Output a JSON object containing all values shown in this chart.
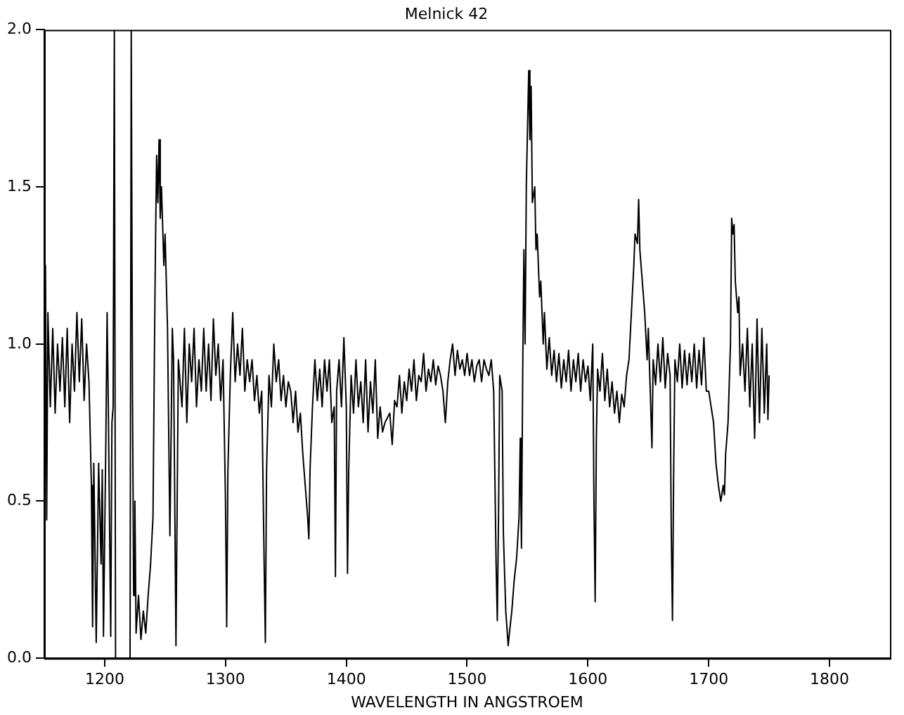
{
  "chart_data": {
    "type": "line",
    "title": "Melnick 42",
    "xlabel": "WAVELENGTH IN ANGSTROEM",
    "xlim": [
      1150,
      1850
    ],
    "xticks": [
      1200,
      1300,
      1400,
      1500,
      1600,
      1700,
      1800
    ],
    "ylim": [
      0,
      2
    ],
    "yticks": [
      {
        "value": 0,
        "label": "0.0"
      },
      {
        "value": 0.5,
        "label": "0.5"
      },
      {
        "value": 1,
        "label": "1.0"
      },
      {
        "value": 1.5,
        "label": "1.5"
      },
      {
        "value": 2,
        "label": "2.0"
      }
    ],
    "grid": false,
    "legend": false,
    "marker": "none",
    "line_style": "solid",
    "series": [
      {
        "color": "#000000",
        "x": [
          1150,
          1151,
          1152,
          1153,
          1155,
          1157,
          1159,
          1161,
          1163,
          1165,
          1167,
          1169,
          1171,
          1173,
          1175,
          1177,
          1179,
          1181,
          1183,
          1185,
          1187,
          1189,
          1190,
          1191,
          1193,
          1195,
          1197,
          1198,
          1199,
          1201,
          1202,
          1203,
          1205,
          1206,
          1207,
          1208,
          1209,
          1221,
          1222,
          1223,
          1224,
          1225,
          1226,
          1228,
          1230,
          1232,
          1234,
          1236,
          1238,
          1240,
          1241,
          1242,
          1243,
          1244,
          1245,
          1246,
          1247,
          1249,
          1250,
          1252,
          1254,
          1256,
          1257,
          1259,
          1261,
          1264,
          1266,
          1268,
          1270,
          1272,
          1274,
          1276,
          1278,
          1280,
          1282,
          1284,
          1286,
          1288,
          1290,
          1292,
          1294,
          1296,
          1298,
          1300,
          1301,
          1302,
          1304,
          1306,
          1308,
          1310,
          1312,
          1314,
          1316,
          1318,
          1320,
          1322,
          1324,
          1326,
          1328,
          1330,
          1332,
          1333,
          1334,
          1336,
          1338,
          1340,
          1342,
          1344,
          1346,
          1348,
          1350,
          1352,
          1354,
          1356,
          1358,
          1360,
          1362,
          1364,
          1366,
          1368,
          1369,
          1370,
          1372,
          1374,
          1376,
          1378,
          1380,
          1382,
          1384,
          1386,
          1388,
          1390,
          1391,
          1392,
          1394,
          1396,
          1398,
          1400,
          1401,
          1402,
          1404,
          1406,
          1408,
          1410,
          1412,
          1414,
          1416,
          1418,
          1420,
          1422,
          1424,
          1426,
          1428,
          1430,
          1432,
          1436,
          1438,
          1440,
          1442,
          1444,
          1446,
          1448,
          1450,
          1452,
          1454,
          1456,
          1458,
          1460,
          1462,
          1464,
          1466,
          1468,
          1470,
          1472,
          1474,
          1476,
          1478,
          1480,
          1482,
          1484,
          1486,
          1488,
          1490,
          1492,
          1494,
          1496,
          1498,
          1500,
          1502,
          1504,
          1506,
          1508,
          1510,
          1512,
          1514,
          1516,
          1518,
          1520,
          1522,
          1524,
          1525,
          1526,
          1527,
          1529,
          1530,
          1532,
          1534,
          1535,
          1537,
          1539,
          1541,
          1543,
          1544,
          1545,
          1546,
          1547,
          1548,
          1549,
          1551,
          1552,
          1553,
          1554,
          1556,
          1557,
          1558,
          1560,
          1561,
          1563,
          1564,
          1566,
          1568,
          1570,
          1572,
          1574,
          1576,
          1578,
          1580,
          1582,
          1584,
          1586,
          1588,
          1590,
          1592,
          1594,
          1596,
          1598,
          1600,
          1602,
          1604,
          1605,
          1606,
          1607,
          1608,
          1610,
          1612,
          1614,
          1616,
          1618,
          1620,
          1622,
          1624,
          1626,
          1628,
          1630,
          1632,
          1634,
          1636,
          1638,
          1639,
          1641,
          1642,
          1643,
          1645,
          1647,
          1649,
          1650,
          1652,
          1653,
          1654,
          1656,
          1658,
          1660,
          1662,
          1664,
          1666,
          1668,
          1669,
          1670,
          1671,
          1672,
          1674,
          1676,
          1678,
          1680,
          1682,
          1684,
          1686,
          1688,
          1690,
          1692,
          1694,
          1696,
          1698,
          1700,
          1702,
          1704,
          1706,
          1708,
          1710,
          1712,
          1713,
          1714,
          1716,
          1718,
          1719,
          1720,
          1721,
          1722,
          1724,
          1725,
          1726,
          1728,
          1730,
          1732,
          1734,
          1736,
          1738,
          1740,
          1742,
          1744,
          1746,
          1748,
          1749,
          1750
        ],
        "values": [
          0.95,
          1.25,
          0.44,
          1.1,
          0.8,
          1.05,
          0.78,
          1.0,
          0.85,
          1.02,
          0.8,
          1.05,
          0.75,
          1.0,
          0.85,
          1.1,
          0.88,
          1.08,
          0.82,
          1.0,
          0.88,
          0.55,
          0.1,
          0.62,
          0.05,
          0.62,
          0.3,
          0.6,
          0.07,
          0.7,
          1.1,
          0.8,
          0.07,
          0.75,
          0.8,
          2.0,
          0.0,
          0.0,
          2.0,
          0.85,
          0.2,
          0.5,
          0.08,
          0.2,
          0.06,
          0.15,
          0.08,
          0.2,
          0.3,
          0.45,
          0.9,
          1.3,
          1.6,
          1.45,
          1.65,
          1.4,
          1.5,
          1.25,
          1.35,
          1.05,
          0.39,
          1.05,
          0.95,
          0.04,
          0.95,
          0.8,
          1.05,
          0.75,
          1.0,
          0.88,
          1.05,
          0.8,
          0.95,
          0.85,
          1.05,
          0.85,
          1.0,
          0.82,
          1.08,
          0.9,
          1.0,
          0.82,
          0.95,
          0.5,
          0.1,
          0.6,
          0.9,
          1.1,
          0.88,
          1.0,
          0.9,
          1.05,
          0.85,
          0.95,
          0.88,
          0.95,
          0.82,
          0.9,
          0.78,
          0.85,
          0.3,
          0.05,
          0.6,
          0.9,
          0.8,
          1.0,
          0.88,
          0.95,
          0.82,
          0.9,
          0.8,
          0.88,
          0.85,
          0.75,
          0.85,
          0.72,
          0.78,
          0.65,
          0.55,
          0.45,
          0.38,
          0.6,
          0.8,
          0.95,
          0.82,
          0.92,
          0.8,
          0.95,
          0.85,
          0.95,
          0.75,
          0.8,
          0.26,
          0.85,
          0.95,
          0.8,
          1.02,
          0.8,
          0.27,
          0.6,
          0.9,
          0.78,
          0.95,
          0.8,
          0.88,
          0.75,
          0.95,
          0.72,
          0.88,
          0.78,
          0.95,
          0.7,
          0.8,
          0.72,
          0.75,
          0.78,
          0.68,
          0.82,
          0.8,
          0.9,
          0.78,
          0.88,
          0.82,
          0.92,
          0.85,
          0.95,
          0.82,
          0.9,
          0.88,
          0.97,
          0.85,
          0.92,
          0.88,
          0.95,
          0.87,
          0.93,
          0.9,
          0.85,
          0.75,
          0.88,
          0.95,
          1.0,
          0.9,
          0.98,
          0.92,
          0.95,
          0.9,
          0.97,
          0.9,
          0.95,
          0.88,
          0.93,
          0.95,
          0.88,
          0.95,
          0.92,
          0.9,
          0.95,
          0.85,
          0.3,
          0.12,
          0.45,
          0.9,
          0.85,
          0.4,
          0.15,
          0.04,
          0.08,
          0.15,
          0.25,
          0.32,
          0.45,
          0.7,
          0.35,
          0.9,
          1.3,
          1.0,
          1.5,
          1.87,
          1.65,
          1.82,
          1.45,
          1.5,
          1.3,
          1.35,
          1.15,
          1.2,
          1.0,
          1.1,
          0.92,
          1.02,
          0.9,
          0.98,
          0.88,
          0.97,
          0.86,
          0.95,
          0.88,
          0.98,
          0.85,
          0.95,
          0.88,
          0.97,
          0.85,
          0.95,
          0.88,
          0.93,
          0.82,
          1.0,
          0.5,
          0.18,
          0.7,
          0.92,
          0.85,
          0.97,
          0.82,
          0.92,
          0.8,
          0.88,
          0.78,
          0.85,
          0.75,
          0.84,
          0.8,
          0.9,
          0.95,
          1.1,
          1.25,
          1.35,
          1.32,
          1.46,
          1.3,
          1.2,
          1.1,
          0.95,
          1.05,
          0.8,
          0.67,
          0.95,
          0.87,
          1.0,
          0.88,
          1.02,
          0.86,
          0.97,
          0.9,
          0.4,
          0.12,
          0.6,
          0.95,
          0.88,
          1.0,
          0.86,
          0.98,
          0.87,
          0.97,
          0.88,
          1.0,
          0.86,
          0.98,
          0.87,
          1.02,
          0.85,
          0.85,
          0.8,
          0.75,
          0.62,
          0.55,
          0.5,
          0.55,
          0.52,
          0.65,
          0.75,
          1.0,
          1.4,
          1.35,
          1.38,
          1.2,
          1.1,
          1.15,
          0.9,
          1.0,
          0.85,
          1.05,
          0.8,
          1.0,
          0.7,
          1.08,
          0.75,
          1.05,
          0.78,
          1.0,
          0.76,
          0.9
        ]
      }
    ]
  }
}
